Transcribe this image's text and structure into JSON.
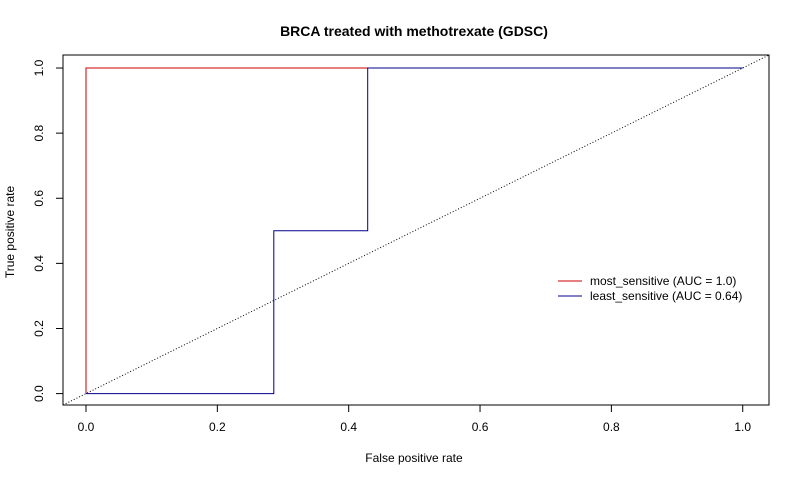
{
  "chart_data": {
    "type": "line",
    "title": "BRCA treated with methotrexate (GDSC)",
    "xlabel": "False positive rate",
    "ylabel": "True positive rate",
    "xlim": [
      -0.035,
      1.04
    ],
    "ylim": [
      -0.035,
      1.04
    ],
    "xticks": [
      "0.0",
      "0.2",
      "0.4",
      "0.6",
      "0.8",
      "1.0"
    ],
    "yticks": [
      "0.0",
      "0.2",
      "0.4",
      "0.6",
      "0.8",
      "1.0"
    ],
    "grid": false,
    "legend_position": "right",
    "series": [
      {
        "name": "most_sensitive (AUC = 1.0)",
        "color": "#cc0000",
        "x": [
          0,
          0,
          1
        ],
        "y": [
          0,
          1,
          1
        ]
      },
      {
        "name": "least_sensitive (AUC = 0.64)",
        "color": "#00008b",
        "x": [
          0,
          0.286,
          0.286,
          0.429,
          0.429,
          1
        ],
        "y": [
          0,
          0,
          0.5,
          0.5,
          1,
          1
        ]
      }
    ],
    "reference_line": {
      "style": "dotted",
      "color": "#000000",
      "x": [
        0,
        1
      ],
      "y": [
        0,
        1
      ]
    }
  }
}
